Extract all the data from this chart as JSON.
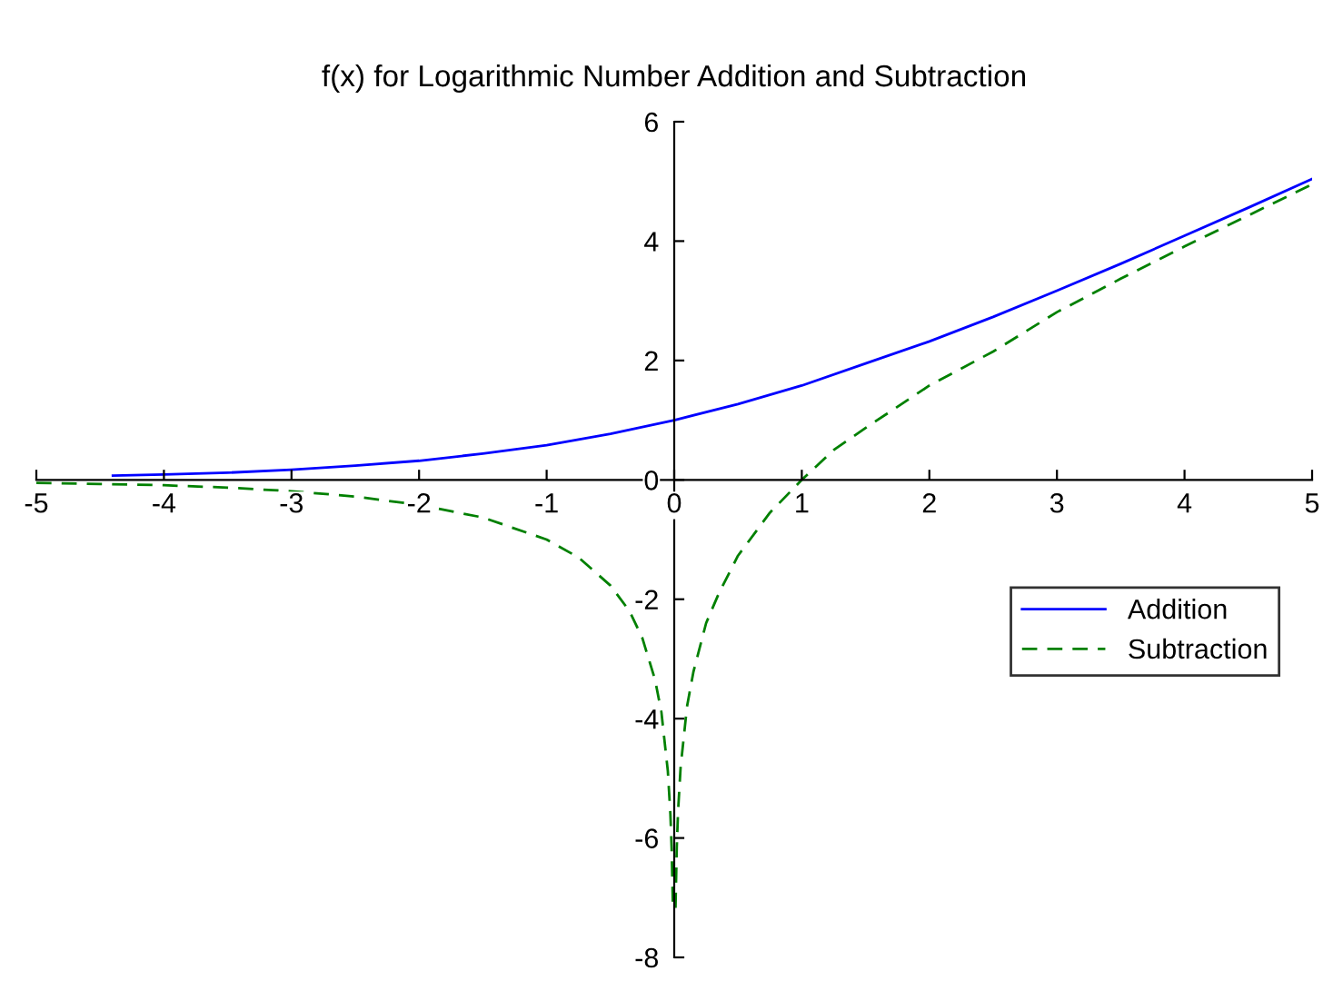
{
  "chart_data": {
    "type": "line",
    "title": "f(x) for Logarithmic Number Addition and Subtraction",
    "series": [
      {
        "name": "Addition",
        "color": "#0000ff",
        "line_style": "solid",
        "x": [
          -4.4,
          -4,
          -3.5,
          -3,
          -2.5,
          -2,
          -1.5,
          -1,
          -0.5,
          0,
          0.5,
          1,
          1.5,
          2,
          2.5,
          3,
          3.5,
          4,
          4.5,
          5
        ],
        "values": [
          0.07,
          0.09,
          0.12,
          0.17,
          0.24,
          0.32,
          0.44,
          0.58,
          0.77,
          1.0,
          1.27,
          1.58,
          1.95,
          2.32,
          2.73,
          3.17,
          3.62,
          4.09,
          4.56,
          5.04
        ]
      },
      {
        "name": "Subtraction",
        "color": "#008000",
        "line_style": "dashed",
        "x": [
          -5,
          -4.5,
          -4,
          -3.5,
          -3,
          -2.5,
          -2,
          -1.5,
          -1,
          -0.75,
          -0.5,
          -0.35,
          -0.25,
          -0.15,
          -0.1,
          -0.05,
          -0.03,
          -0.02,
          -0.01,
          0,
          0.01,
          0.02,
          0.03,
          0.05,
          0.1,
          0.15,
          0.25,
          0.35,
          0.5,
          0.75,
          1,
          1.25,
          1.5,
          2,
          2.5,
          3,
          3.5,
          4,
          4.5,
          5
        ],
        "values": [
          -0.05,
          -0.07,
          -0.09,
          -0.13,
          -0.19,
          -0.28,
          -0.42,
          -0.63,
          -1.0,
          -1.3,
          -1.77,
          -2.2,
          -2.65,
          -3.35,
          -3.9,
          -4.88,
          -5.6,
          -6.18,
          -7.18,
          null,
          -7.17,
          -6.16,
          -5.56,
          -4.82,
          -3.8,
          -3.22,
          -2.4,
          -1.9,
          -1.27,
          -0.55,
          0.0,
          0.5,
          0.87,
          1.58,
          2.15,
          2.81,
          3.37,
          3.91,
          4.43,
          4.95
        ]
      }
    ],
    "xlim": [
      -5,
      5
    ],
    "ylim": [
      -8,
      6
    ],
    "xticks": [
      -5,
      -4,
      -3,
      -2,
      -1,
      0,
      1,
      2,
      3,
      4,
      5
    ],
    "yticks": [
      -8,
      -6,
      -4,
      -2,
      0,
      2,
      4,
      6
    ],
    "grid": false,
    "legend": "right",
    "marker": "none"
  }
}
